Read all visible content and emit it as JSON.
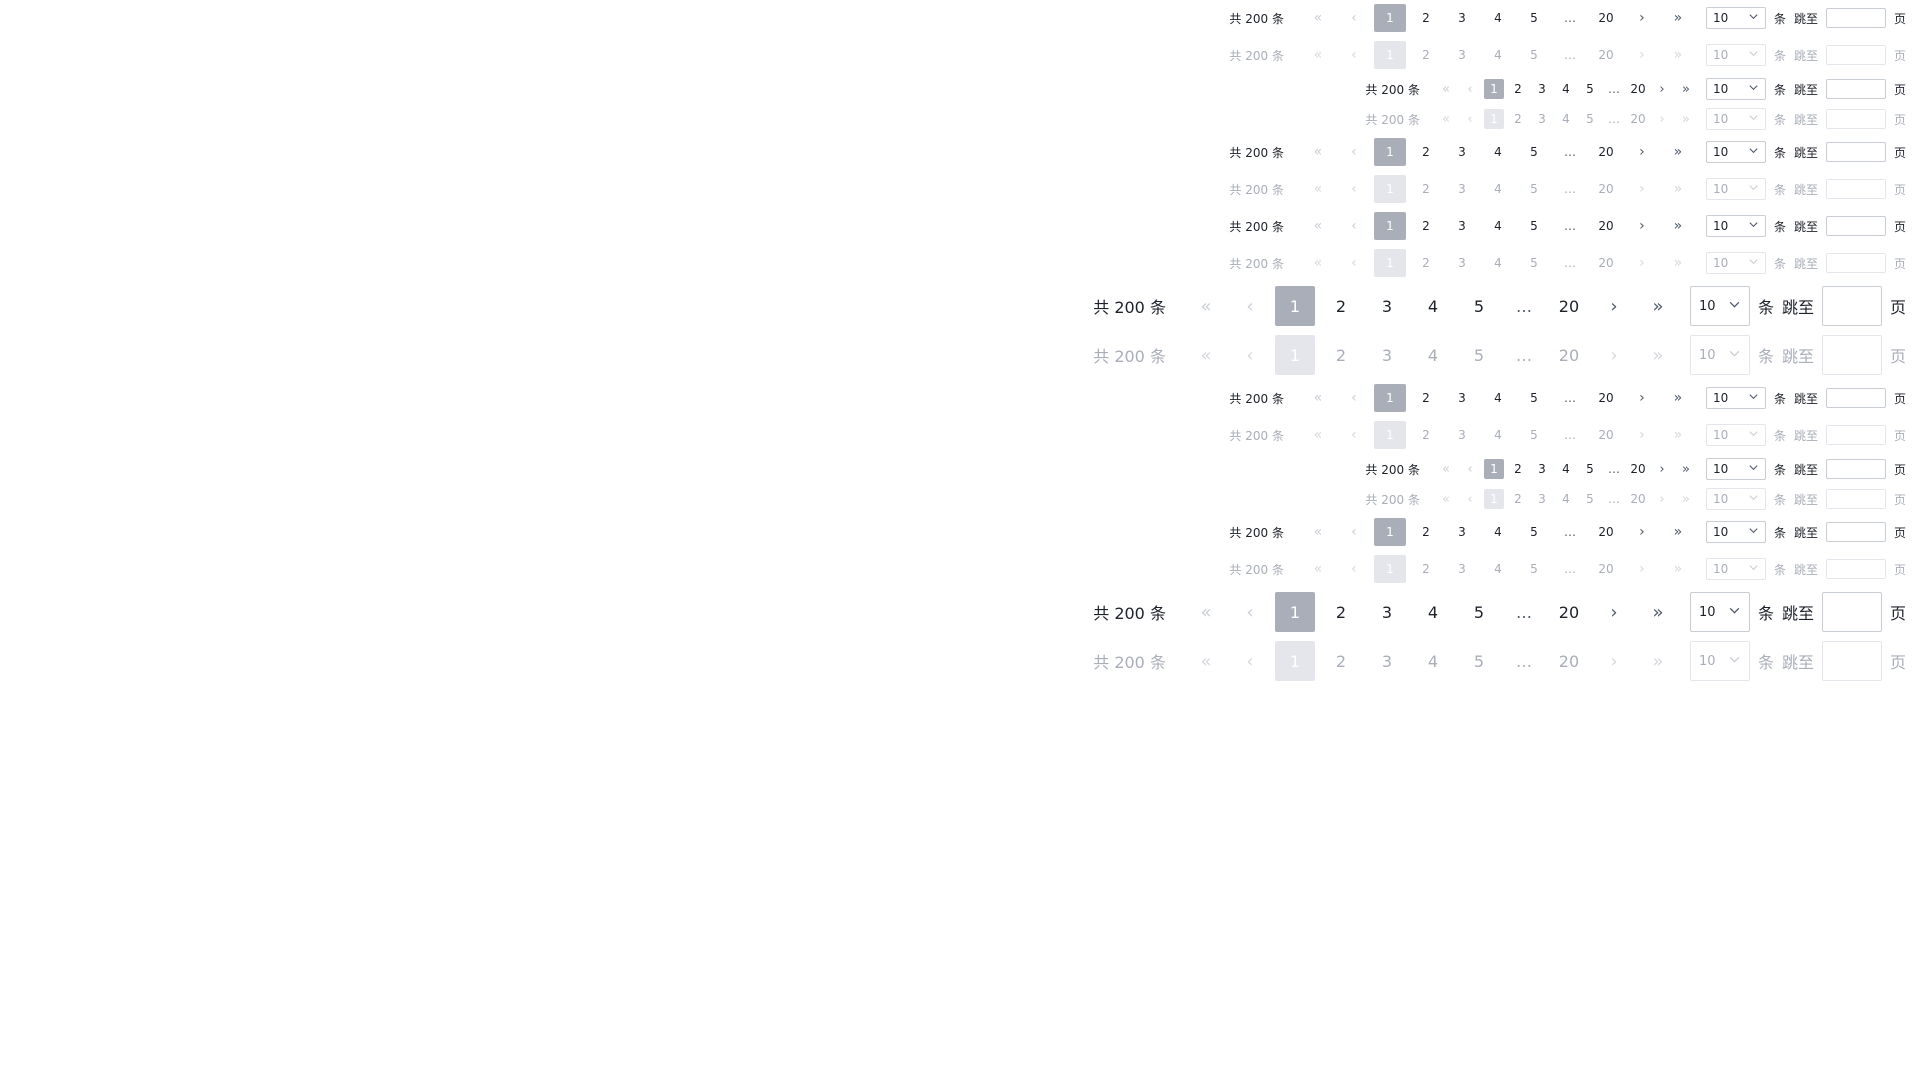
{
  "pagination": {
    "total_text": "共 200 条",
    "pages": [
      "1",
      "2",
      "3",
      "4",
      "5"
    ],
    "ellipsis": "…",
    "last_page": "20",
    "page_size_value": "10",
    "unit_text": "条",
    "jump_label": "跳至",
    "page_suffix": "页",
    "jump_value": "",
    "icons": {
      "first": "double-chevron-left-icon",
      "prev": "chevron-left-icon",
      "next": "chevron-right-icon",
      "last": "double-chevron-right-icon",
      "select": "chevron-down-icon"
    },
    "colors": {
      "active_bg": "#a9aeb8",
      "active_disabled_bg": "#e5e6eb",
      "text": "#1d2129",
      "disabled_text": "#a9aeb8",
      "border": "#c9cdd4"
    }
  },
  "rows": [
    {
      "size": "medium",
      "state": "enabled"
    },
    {
      "size": "medium",
      "state": "disabled"
    },
    {
      "size": "small",
      "state": "enabled"
    },
    {
      "size": "small",
      "state": "disabled"
    },
    {
      "size": "medium",
      "state": "enabled"
    },
    {
      "size": "medium",
      "state": "disabled"
    },
    {
      "size": "medium",
      "state": "enabled"
    },
    {
      "size": "medium",
      "state": "disabled"
    },
    {
      "size": "large",
      "state": "enabled"
    },
    {
      "size": "large",
      "state": "disabled"
    },
    {
      "size": "medium",
      "state": "enabled"
    },
    {
      "size": "medium",
      "state": "disabled"
    },
    {
      "size": "small",
      "state": "enabled"
    },
    {
      "size": "small",
      "state": "disabled"
    },
    {
      "size": "medium",
      "state": "enabled"
    },
    {
      "size": "medium",
      "state": "disabled"
    },
    {
      "size": "large",
      "state": "enabled"
    },
    {
      "size": "large",
      "state": "disabled"
    }
  ]
}
